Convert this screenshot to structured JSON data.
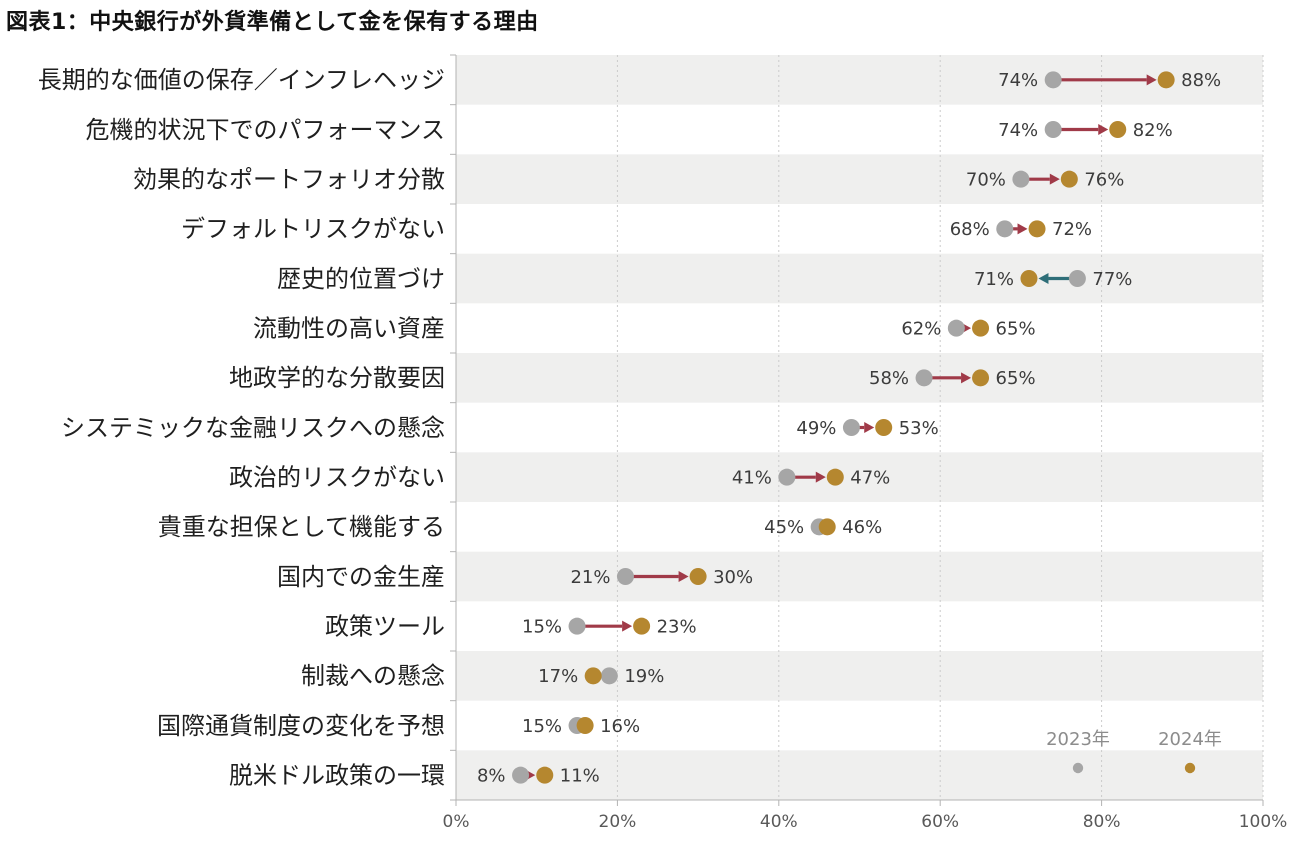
{
  "title": "図表1：中央銀行が外貨準備として金を保有する理由",
  "chart_data": {
    "type": "dumbbell",
    "title": "図表1：中央銀行が外貨準備として金を保有する理由",
    "categories": [
      "長期的な価値の保存／インフレヘッジ",
      "危機的状況下でのパフォーマンス",
      "効果的なポートフォリオ分散",
      "デフォルトリスクがない",
      "歴史的位置づけ",
      "流動性の高い資産",
      "地政学的な分散要因",
      "システミックな金融リスクへの懸念",
      "政治的リスクがない",
      "貴重な担保として機能する",
      "国内での金生産",
      "政策ツール",
      "制裁への懸念",
      "国際通貨制度の変化を予想",
      "脱米ドル政策の一環"
    ],
    "series": [
      {
        "name": "2023年",
        "color": "#a6a6a6",
        "values": [
          74,
          74,
          70,
          68,
          77,
          62,
          58,
          49,
          41,
          45,
          21,
          15,
          19,
          15,
          8
        ]
      },
      {
        "name": "2024年",
        "color": "#b5872f",
        "values": [
          88,
          82,
          76,
          72,
          71,
          65,
          65,
          53,
          47,
          46,
          30,
          23,
          17,
          16,
          11
        ]
      }
    ],
    "value_suffix": "%",
    "xlim": [
      0,
      100
    ],
    "x_ticks": [
      "0%",
      "20%",
      "40%",
      "60%",
      "80%",
      "100%"
    ],
    "legend_position": "bottom-right-inside",
    "grid": "vertical-dashed",
    "colors": {
      "stripe": "#efefee",
      "increase": "#a03a48",
      "decrease": "#2e6e78",
      "axis": "#b3b3b3",
      "gridline": "#cbcbcb",
      "category_text": "#1f1f1f",
      "value_text": "#3c3c3c",
      "tick_text": "#595959",
      "legend_text": "#8c8c8c"
    }
  }
}
